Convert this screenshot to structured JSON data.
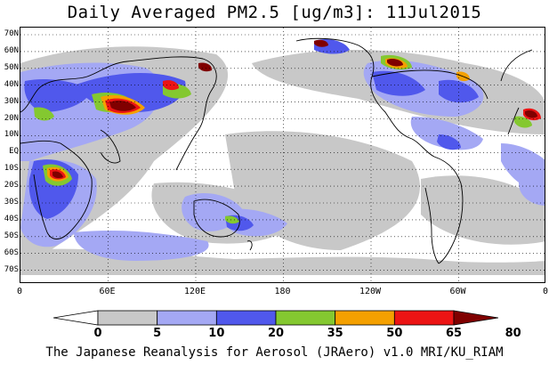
{
  "title": "Daily Averaged PM2.5 [ug/m3]: 11Jul2015",
  "footer": "The Japanese Reanalysis for Aerosol (JRAero) v1.0 MRI/KU_RIAM",
  "lat_labels": [
    "70N",
    "60N",
    "50N",
    "40N",
    "30N",
    "20N",
    "10N",
    "EQ",
    "10S",
    "20S",
    "30S",
    "40S",
    "50S",
    "60S",
    "70S"
  ],
  "lon_labels": [
    "0",
    "60E",
    "120E",
    "180",
    "120W",
    "60W",
    "0"
  ],
  "colorbar": {
    "thresholds": [
      "0",
      "5",
      "10",
      "20",
      "35",
      "50",
      "65",
      "80"
    ],
    "colors": [
      "#ffffff",
      "#c8c8c8",
      "#a4a8f4",
      "#5058ec",
      "#84c830",
      "#f4a000",
      "#ec1414",
      "#800000"
    ]
  },
  "field_colors": {
    "c5": "#c8c8c8",
    "c10": "#a4a8f4",
    "c20": "#5058ec",
    "c35": "#84c830",
    "c50": "#f4a000",
    "c65": "#ec1414",
    "c80": "#800000"
  }
}
